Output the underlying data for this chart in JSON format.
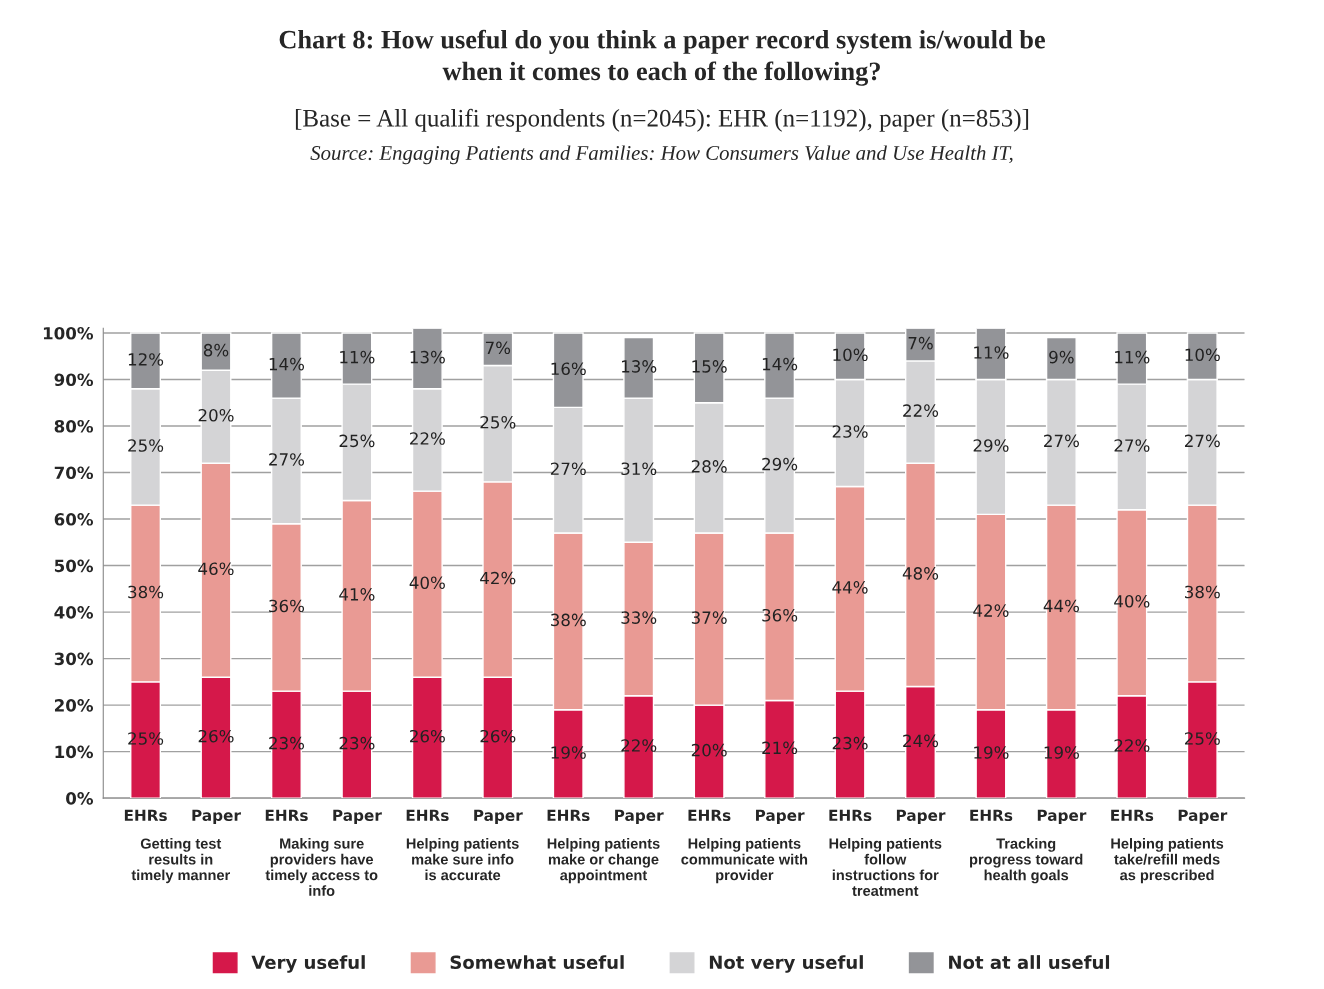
{
  "chart_data": {
    "type": "bar",
    "stacked": true,
    "title": "Chart 8: How useful do you think a paper record system is/would be\nwhen it comes to each of the following?",
    "subtitle": "[Base = All qualifi respondents (n=2045): EHR (n=1192), paper (n=853)]",
    "annotations": [
      "Source: Engaging Patients and Families: How Consumers Value and Use Health IT,",
      "Getting test results in timely manner",
      "Making sure providers have timely access to info",
      "Helping patients make sure info is accurate",
      "Helping patients make or change appointment",
      "Helping patients communicate with provider",
      "Helping patients follow instructions for treatment",
      "Tracking progress toward health goals",
      "Helping patients take/refill meds as prescribed"
    ],
    "categories": [
      "EHRs",
      "Paper",
      "EHRs",
      "Paper",
      "EHRs",
      "Paper",
      "EHRs",
      "Paper",
      "EHRs",
      "Paper",
      "EHRs",
      "Paper",
      "EHRs",
      "Paper",
      "EHRs",
      "Paper"
    ],
    "series": [
      {
        "name": "Very useful",
        "color": "#d5184a",
        "values": [
          25,
          26,
          23,
          23,
          26,
          26,
          19,
          22,
          20,
          21,
          23,
          24,
          19,
          19,
          22,
          25
        ],
        "value_labels": [
          "25%",
          "26%",
          "23%",
          "23%",
          "26%",
          "26%",
          "19%",
          "22%",
          "20%",
          "21%",
          "23%",
          "24%",
          "19%",
          "19%",
          "22%",
          "25%"
        ]
      },
      {
        "name": "Somewhat useful",
        "color": "#e99a94",
        "values": [
          38,
          46,
          36,
          41,
          40,
          42,
          38,
          33,
          37,
          36,
          44,
          48,
          42,
          44,
          40,
          38
        ],
        "value_labels": [
          "38%",
          "46%",
          "36%",
          "41%",
          "40%",
          "42%",
          "38%",
          "33%",
          "37%",
          "36%",
          "44%",
          "48%",
          "42%",
          "44%",
          "40%",
          "38%"
        ]
      },
      {
        "name": "Not very useful",
        "color": "#d4d4d6",
        "values": [
          25,
          20,
          27,
          25,
          22,
          25,
          27,
          31,
          28,
          29,
          23,
          22,
          29,
          27,
          27,
          27
        ],
        "value_labels": [
          "25%",
          "20%",
          "27%",
          "25%",
          "22%",
          "25%",
          "27%",
          "31%",
          "28%",
          "29%",
          "23%",
          "22%",
          "29%",
          "27%",
          "27%",
          "27%"
        ]
      },
      {
        "name": "Not at all useful",
        "color": "#939498",
        "values": [
          12,
          8,
          14,
          11,
          13,
          7,
          16,
          13,
          15,
          14,
          10,
          7,
          11,
          9,
          11,
          10
        ],
        "value_labels": [
          "12%",
          "8%",
          "14%",
          "11%",
          "13%",
          "7%",
          "16%",
          "13%",
          "15%",
          "14%",
          "10%",
          "7%",
          "11%",
          "9%",
          "11%",
          "10%"
        ]
      }
    ],
    "ylim": [
      0,
      101
    ],
    "yticks": [
      {
        "value": 0,
        "label": "0%"
      },
      {
        "value": 10,
        "label": "10%"
      },
      {
        "value": 20,
        "label": "20%"
      },
      {
        "value": 30,
        "label": "30%"
      },
      {
        "value": 40,
        "label": "40%"
      },
      {
        "value": 50,
        "label": "50%"
      },
      {
        "value": 60,
        "label": "60%"
      },
      {
        "value": 70,
        "label": "70%"
      },
      {
        "value": 80,
        "label": "80%"
      },
      {
        "value": 90,
        "label": "90%"
      },
      {
        "value": 100,
        "label": "100%"
      }
    ],
    "grid": "y",
    "legend": "bottom"
  }
}
